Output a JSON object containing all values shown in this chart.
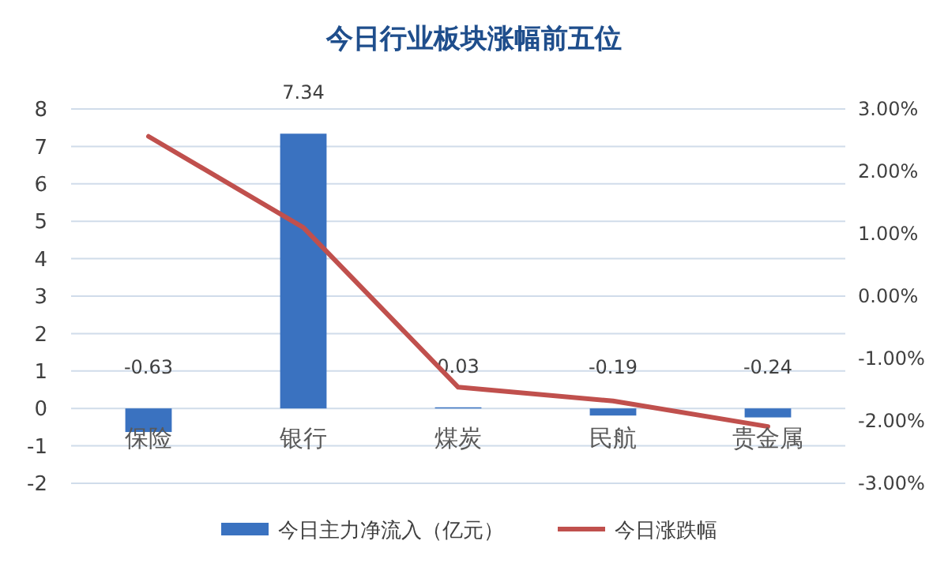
{
  "chart_data": {
    "type": "bar",
    "title": "今日行业板块涨幅前五位",
    "categories": [
      "保险",
      "银行",
      "煤炭",
      "民航",
      "贵金属"
    ],
    "series": [
      {
        "name": "今日主力净流入（亿元）",
        "color": "#3a72c0",
        "values": [
          -0.63,
          7.34,
          0.03,
          -0.19,
          -0.24
        ],
        "value_labels": [
          "-0.63",
          "7.34",
          "0.03",
          "-0.19",
          "-0.24"
        ]
      },
      {
        "name": "今日涨跌幅",
        "type": "line",
        "axis": "y2",
        "color": "#c0504d",
        "values": [
          2.56,
          1.1,
          -1.46,
          -1.68,
          -2.09
        ]
      }
    ],
    "ylim": [
      -2,
      8
    ],
    "yticks": [
      -2,
      -1,
      0,
      1,
      2,
      3,
      4,
      5,
      6,
      7,
      8
    ],
    "y2lim": [
      -3,
      3
    ],
    "y2ticks": [
      {
        "value": -3,
        "label": "-3.00%"
      },
      {
        "value": -2,
        "label": "-2.00%"
      },
      {
        "value": -1,
        "label": "-1.00%"
      },
      {
        "value": 0,
        "label": "0.00%"
      },
      {
        "value": 1,
        "label": "1.00%"
      },
      {
        "value": 2,
        "label": "2.00%"
      },
      {
        "value": 3,
        "label": "3.00%"
      }
    ],
    "grid": "y",
    "legend": "bottom",
    "marker": "none",
    "line_style": "solid"
  }
}
